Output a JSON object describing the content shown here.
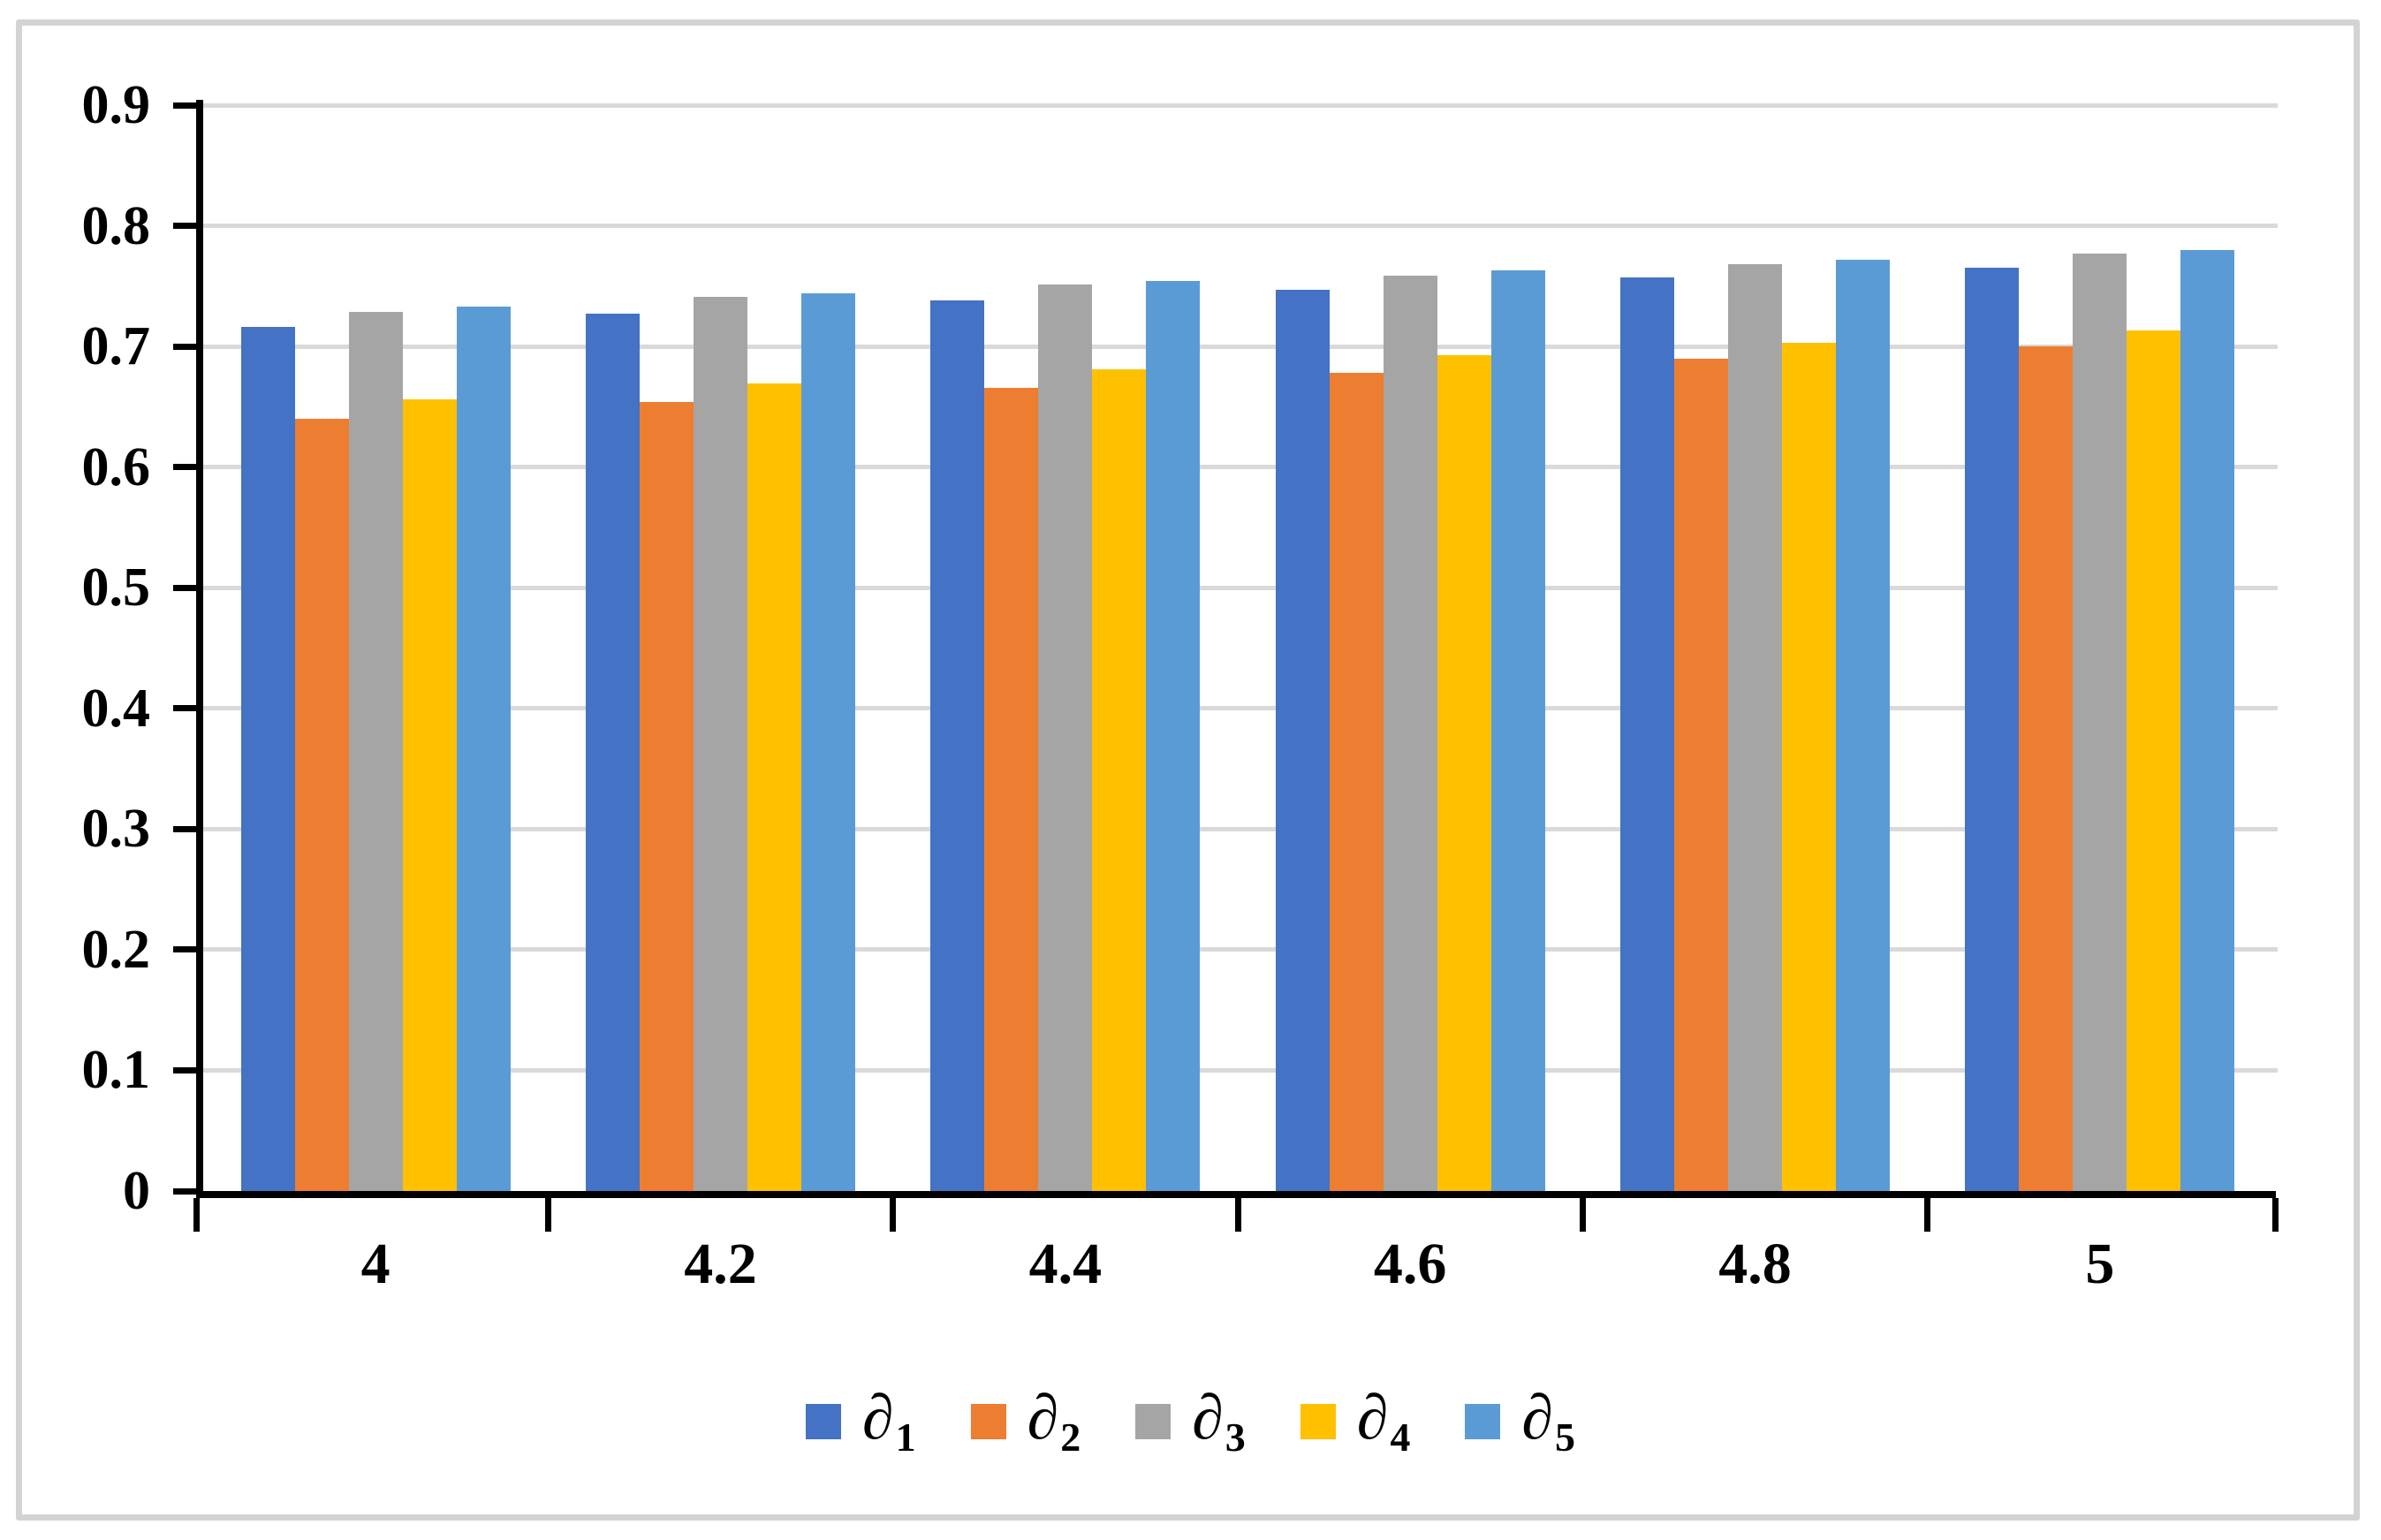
{
  "chart_data": {
    "type": "bar",
    "title": "",
    "xlabel": "",
    "ylabel": "",
    "categories": [
      "4",
      "4.2",
      "4.4",
      "4.6",
      "4.8",
      "5"
    ],
    "series": [
      {
        "name": "∂1",
        "symbol": "∂",
        "sub": "1",
        "color": "#4472c4",
        "values": [
          0.716,
          0.727,
          0.738,
          0.747,
          0.757,
          0.765
        ]
      },
      {
        "name": "∂2",
        "symbol": "∂",
        "sub": "2",
        "color": "#ed7d31",
        "values": [
          0.64,
          0.654,
          0.666,
          0.678,
          0.69,
          0.7
        ]
      },
      {
        "name": "∂3",
        "symbol": "∂",
        "sub": "3",
        "color": "#a5a5a5",
        "values": [
          0.729,
          0.741,
          0.751,
          0.759,
          0.768,
          0.777
        ]
      },
      {
        "name": "∂4",
        "symbol": "∂",
        "sub": "4",
        "color": "#ffc000",
        "values": [
          0.656,
          0.669,
          0.681,
          0.693,
          0.703,
          0.713
        ]
      },
      {
        "name": "∂5",
        "symbol": "∂",
        "sub": "5",
        "color": "#5b9bd5",
        "values": [
          0.733,
          0.744,
          0.754,
          0.763,
          0.772,
          0.78
        ]
      }
    ],
    "y_ticks": [
      "0",
      "0.1",
      "0.2",
      "0.3",
      "0.4",
      "0.5",
      "0.6",
      "0.7",
      "0.8",
      "0.9"
    ],
    "ylim": [
      0,
      0.9
    ],
    "grid": true,
    "legend_position": "bottom",
    "colors": {
      "gridline": "#d9d9d9",
      "axis": "#000000",
      "frame_border": "#d3d3d3",
      "background": "#ffffff"
    }
  }
}
